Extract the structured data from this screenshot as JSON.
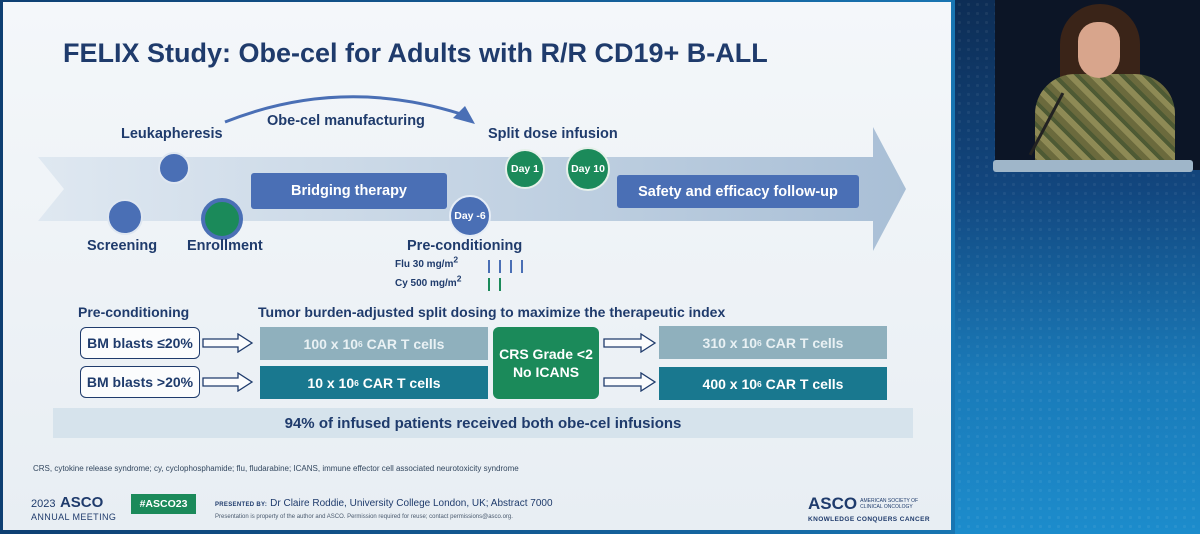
{
  "slide": {
    "title": "FELIX Study: Obe-cel for Adults with R/R CD19+ B-ALL",
    "timeline": {
      "leukapheresis": "Leukapheresis",
      "manufacturing": "Obe-cel manufacturing",
      "split_dose_infusion": "Split dose infusion",
      "bridging_therapy": "Bridging therapy",
      "day1": "Day 1",
      "day10": "Day 10",
      "day_minus6": "Day -6",
      "safety_followup": "Safety and efficacy follow-up",
      "screening": "Screening",
      "enrollment": "Enrollment",
      "preconditioning": "Pre-conditioning",
      "flu": "Flu 30 mg/m",
      "cy": "Cy 500 mg/m",
      "sq": "2"
    },
    "dosing": {
      "preconditioning_label": "Pre-conditioning",
      "heading": "Tumor burden-adjusted split dosing to maximize the therapeutic index",
      "bm_low": "BM blasts ≤20%",
      "bm_high": "BM blasts >20%",
      "dose_100_pre": "100 x 10",
      "dose_10_pre": "10 x 10",
      "dose_310_pre": "310 x 10",
      "dose_400_pre": "400 x 10",
      "exp": "6",
      "car_suffix": " CAR T cells",
      "crs_line1": "CRS Grade <2",
      "crs_line2": "No ICANS"
    },
    "summary": "94% of infused patients received both obe-cel infusions",
    "abbreviations": "CRS, cytokine release syndrome; cy, cyclophosphamide; flu, fludarabine; ICANS, immune effector cell associated neurotoxicity syndrome",
    "footer": {
      "year": "2023",
      "asco": "ASCO",
      "annual_meeting": "ANNUAL MEETING",
      "hashtag": "#ASCO23",
      "presented_by_label": "PRESENTED BY:",
      "presenter": "Dr Claire Roddie, University College London, UK; Abstract 7000",
      "property_note": "Presentation is property of the author and ASCO. Permission required for reuse; contact permissions@asco.org.",
      "asco_logo": "ASCO",
      "society": "AMERICAN SOCIETY OF CLINICAL ONCOLOGY",
      "tagline": "KNOWLEDGE CONQUERS CANCER"
    }
  },
  "colors": {
    "navy": "#1f3b6c",
    "blue": "#4a6fb5",
    "green": "#1b8a5a",
    "teal": "#19788f",
    "grey_blue": "#8fb0bd"
  }
}
